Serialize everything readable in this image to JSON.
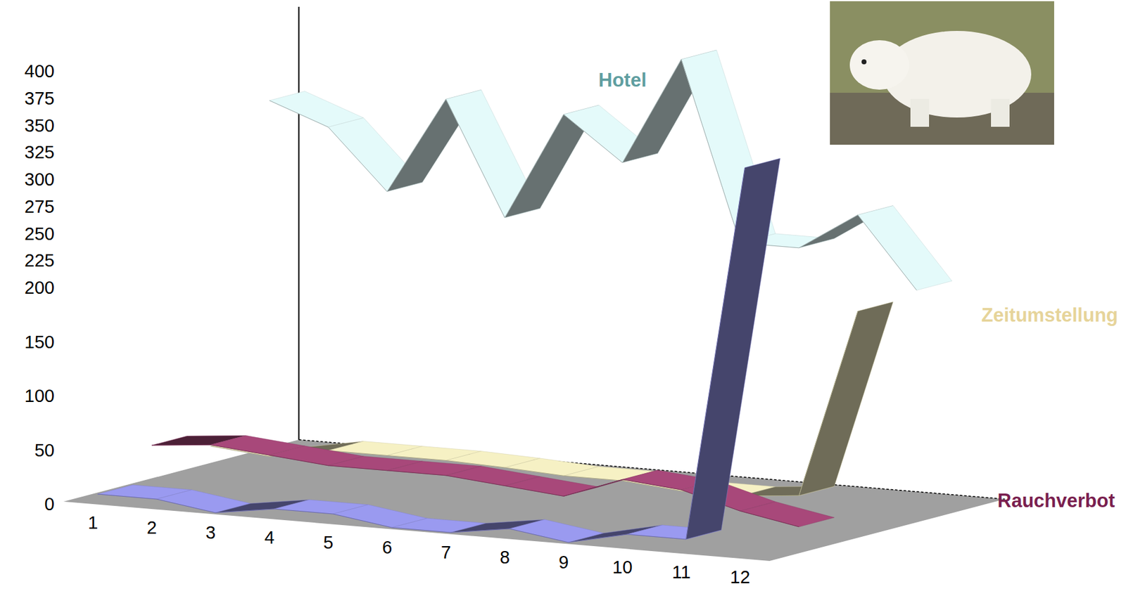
{
  "chart_data": {
    "type": "ribbon3d",
    "categories": [
      "1",
      "2",
      "3",
      "4",
      "5",
      "6",
      "7",
      "8",
      "9",
      "10",
      "11",
      "12"
    ],
    "ylim": [
      0,
      400
    ],
    "yticks": [
      0,
      50,
      100,
      150,
      200,
      225,
      250,
      275,
      300,
      325,
      350,
      375,
      400
    ],
    "series": [
      {
        "name": "Hotel",
        "color": "#e4fafa",
        "values": [
          330,
          310,
          255,
          345,
          240,
          340,
          300,
          400,
          235,
          235,
          270,
          205
        ]
      },
      {
        "name": "Zeitumstellung",
        "color": "#f6f1c4",
        "values": [
          25,
          20,
          30,
          30,
          30,
          28,
          25,
          25,
          20,
          20,
          25,
          200
        ]
      },
      {
        "name": "Rauchverbot",
        "color": "#a8487a",
        "values": [
          40,
          45,
          40,
          35,
          35,
          35,
          30,
          25,
          45,
          40,
          25,
          15
        ]
      },
      {
        "color": "#9a9af0",
        "values": [
          8,
          8,
          0,
          8,
          8,
          0,
          0,
          8,
          0,
          12,
          12,
          360
        ]
      }
    ]
  }
}
